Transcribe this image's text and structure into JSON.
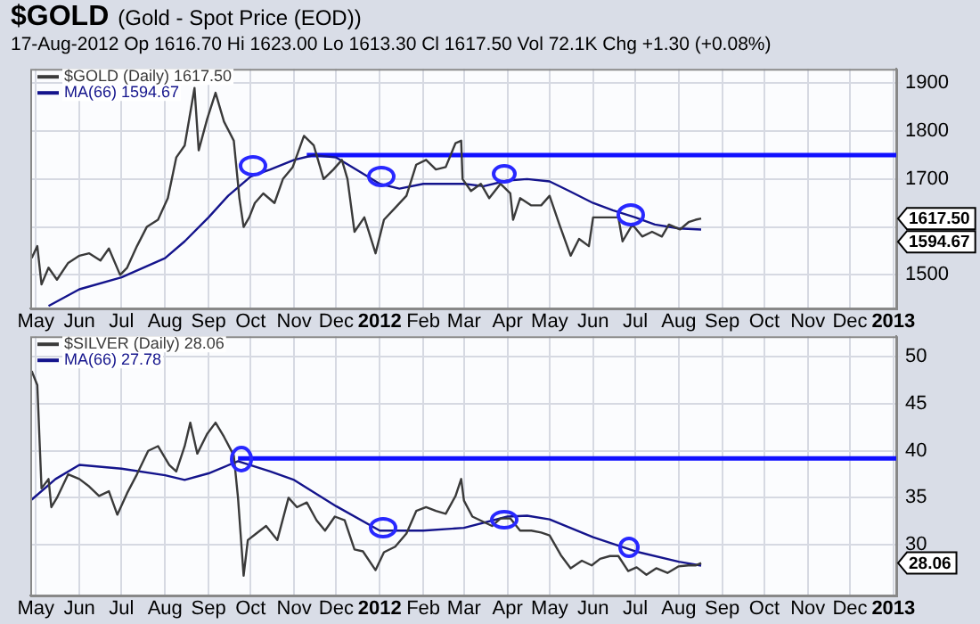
{
  "chart_data": [
    {
      "type": "line",
      "title": "$GOLD (Gold - Spot Price (EOD))",
      "subtitle": "17-Aug-2012 Op 1616.70 Hi 1623.00 Lo 1613.30 Cl 1617.50 Vol 72.1K Chg +1.30 (+0.08%)",
      "annotations": [
        "1617.50",
        "1594.67"
      ],
      "xlim": [
        "2011-04-27",
        "2013-01-03"
      ],
      "xticks": [
        {
          "value": "2011-05",
          "label": "May"
        },
        {
          "value": "2011-06",
          "label": "Jun"
        },
        {
          "value": "2011-07",
          "label": "Jul"
        },
        {
          "value": "2011-08",
          "label": "Aug"
        },
        {
          "value": "2011-09",
          "label": "Sep"
        },
        {
          "value": "2011-10",
          "label": "Oct"
        },
        {
          "value": "2011-11",
          "label": "Nov"
        },
        {
          "value": "2011-12",
          "label": "Dec"
        },
        {
          "value": "2012-01",
          "label": "2012"
        },
        {
          "value": "2012-02",
          "label": "Feb"
        },
        {
          "value": "2012-03",
          "label": "Mar"
        },
        {
          "value": "2012-04",
          "label": "Apr"
        },
        {
          "value": "2012-05",
          "label": "May"
        },
        {
          "value": "2012-06",
          "label": "Jun"
        },
        {
          "value": "2012-07",
          "label": "Jul"
        },
        {
          "value": "2012-08",
          "label": "Aug"
        },
        {
          "value": "2012-09",
          "label": "Sep"
        },
        {
          "value": "2012-10",
          "label": "Oct"
        },
        {
          "value": "2012-11",
          "label": "Nov"
        },
        {
          "value": "2012-12",
          "label": "Dec"
        },
        {
          "value": "2013-01",
          "label": "2013"
        }
      ],
      "ylim": [
        1430,
        1930
      ],
      "yticks": [
        1500,
        {
          "value": 1600,
          "label": null
        },
        1700,
        1800,
        1900
      ],
      "grid": true,
      "legend": "top left",
      "series": [
        {
          "name": "$GOLD (Daily) 1617.50",
          "color": "#3a3a3a",
          "x": [
            "2011-04-28",
            "2011-05-02",
            "2011-05-05",
            "2011-05-10",
            "2011-05-16",
            "2011-05-24",
            "2011-06-01",
            "2011-06-08",
            "2011-06-16",
            "2011-06-22",
            "2011-06-30",
            "2011-07-05",
            "2011-07-12",
            "2011-07-19",
            "2011-07-27",
            "2011-08-03",
            "2011-08-09",
            "2011-08-15",
            "2011-08-22",
            "2011-08-25",
            "2011-08-31",
            "2011-09-06",
            "2011-09-12",
            "2011-09-19",
            "2011-09-23",
            "2011-09-26",
            "2011-09-30",
            "2011-10-04",
            "2011-10-10",
            "2011-10-18",
            "2011-10-24",
            "2011-10-31",
            "2011-11-08",
            "2011-11-15",
            "2011-11-22",
            "2011-11-29",
            "2011-12-05",
            "2011-12-09",
            "2011-12-14",
            "2011-12-21",
            "2011-12-29",
            "2012-01-04",
            "2012-01-12",
            "2012-01-20",
            "2012-01-27",
            "2012-02-03",
            "2012-02-10",
            "2012-02-17",
            "2012-02-24",
            "2012-02-28",
            "2012-02-29",
            "2012-03-06",
            "2012-03-13",
            "2012-03-19",
            "2012-03-27",
            "2012-04-03",
            "2012-04-05",
            "2012-04-10",
            "2012-04-18",
            "2012-04-25",
            "2012-05-01",
            "2012-05-08",
            "2012-05-16",
            "2012-05-22",
            "2012-05-29",
            "2012-06-01",
            "2012-06-06",
            "2012-06-13",
            "2012-06-19",
            "2012-06-22",
            "2012-06-29",
            "2012-07-06",
            "2012-07-13",
            "2012-07-20",
            "2012-07-25",
            "2012-08-02",
            "2012-08-08",
            "2012-08-13",
            "2012-08-17"
          ],
          "values": [
            1535,
            1560,
            1480,
            1515,
            1490,
            1525,
            1540,
            1545,
            1530,
            1555,
            1500,
            1515,
            1560,
            1600,
            1615,
            1660,
            1745,
            1770,
            1890,
            1760,
            1825,
            1880,
            1820,
            1780,
            1660,
            1600,
            1620,
            1650,
            1670,
            1650,
            1700,
            1725,
            1790,
            1770,
            1700,
            1720,
            1740,
            1700,
            1590,
            1620,
            1545,
            1615,
            1640,
            1665,
            1730,
            1740,
            1720,
            1725,
            1775,
            1780,
            1700,
            1675,
            1690,
            1660,
            1690,
            1670,
            1615,
            1660,
            1645,
            1645,
            1665,
            1605,
            1540,
            1575,
            1560,
            1620,
            1620,
            1620,
            1620,
            1570,
            1605,
            1580,
            1590,
            1580,
            1605,
            1595,
            1610,
            1615,
            1617.5
          ]
        },
        {
          "name": "MA(66) 1594.67",
          "color": "#14148c",
          "x": [
            "2011-05-10",
            "2011-06-01",
            "2011-07-01",
            "2011-08-01",
            "2011-08-15",
            "2011-09-01",
            "2011-09-15",
            "2011-10-01",
            "2011-10-15",
            "2011-11-01",
            "2011-11-15",
            "2011-12-01",
            "2011-12-15",
            "2012-01-01",
            "2012-01-15",
            "2012-02-01",
            "2012-03-01",
            "2012-03-15",
            "2012-04-01",
            "2012-04-15",
            "2012-05-01",
            "2012-05-15",
            "2012-06-01",
            "2012-06-15",
            "2012-07-01",
            "2012-07-15",
            "2012-08-01",
            "2012-08-17"
          ],
          "values": [
            1435,
            1470,
            1495,
            1535,
            1570,
            1620,
            1665,
            1705,
            1720,
            1740,
            1750,
            1745,
            1720,
            1690,
            1680,
            1690,
            1690,
            1685,
            1697,
            1700,
            1695,
            1675,
            1650,
            1635,
            1620,
            1605,
            1597,
            1594.67
          ]
        },
        {
          "color": "#1010ff",
          "x": [
            "2011-11-10",
            "2013-01-03"
          ],
          "values": [
            1750,
            1750
          ]
        }
      ]
    },
    {
      "type": "line",
      "annotations": [
        "28.06"
      ],
      "xlim": [
        "2011-04-27",
        "2013-01-03"
      ],
      "xticks": [
        {
          "value": "2011-05",
          "label": "May"
        },
        {
          "value": "2011-06",
          "label": "Jun"
        },
        {
          "value": "2011-07",
          "label": "Jul"
        },
        {
          "value": "2011-08",
          "label": "Aug"
        },
        {
          "value": "2011-09",
          "label": "Sep"
        },
        {
          "value": "2011-10",
          "label": "Oct"
        },
        {
          "value": "2011-11",
          "label": "Nov"
        },
        {
          "value": "2011-12",
          "label": "Dec"
        },
        {
          "value": "2012-01",
          "label": "2012"
        },
        {
          "value": "2012-02",
          "label": "Feb"
        },
        {
          "value": "2012-03",
          "label": "Mar"
        },
        {
          "value": "2012-04",
          "label": "Apr"
        },
        {
          "value": "2012-05",
          "label": "May"
        },
        {
          "value": "2012-06",
          "label": "Jun"
        },
        {
          "value": "2012-07",
          "label": "Jul"
        },
        {
          "value": "2012-08",
          "label": "Aug"
        },
        {
          "value": "2012-09",
          "label": "Sep"
        },
        {
          "value": "2012-10",
          "label": "Oct"
        },
        {
          "value": "2012-11",
          "label": "Nov"
        },
        {
          "value": "2012-12",
          "label": "Dec"
        },
        {
          "value": "2013-01",
          "label": "2013"
        }
      ],
      "ylim": [
        24.6,
        52.2
      ],
      "yticks": [
        30,
        35,
        40,
        45,
        50
      ],
      "grid": true,
      "legend": "top left",
      "series": [
        {
          "name": "$SILVER (Daily) 28.06",
          "color": "#3a3a3a",
          "x": [
            "2011-04-28",
            "2011-05-02",
            "2011-05-05",
            "2011-05-10",
            "2011-05-12",
            "2011-05-16",
            "2011-05-24",
            "2011-06-01",
            "2011-06-08",
            "2011-06-15",
            "2011-06-22",
            "2011-06-28",
            "2011-07-05",
            "2011-07-12",
            "2011-07-20",
            "2011-07-27",
            "2011-08-04",
            "2011-08-09",
            "2011-08-15",
            "2011-08-19",
            "2011-08-24",
            "2011-08-31",
            "2011-09-06",
            "2011-09-12",
            "2011-09-19",
            "2011-09-22",
            "2011-09-26",
            "2011-09-29",
            "2011-10-05",
            "2011-10-12",
            "2011-10-20",
            "2011-10-28",
            "2011-11-03",
            "2011-11-10",
            "2011-11-17",
            "2011-11-23",
            "2011-11-30",
            "2011-12-07",
            "2011-12-14",
            "2011-12-20",
            "2011-12-29",
            "2012-01-04",
            "2012-01-12",
            "2012-01-20",
            "2012-01-27",
            "2012-02-03",
            "2012-02-10",
            "2012-02-17",
            "2012-02-24",
            "2012-02-28",
            "2012-03-01",
            "2012-03-07",
            "2012-03-14",
            "2012-03-21",
            "2012-03-27",
            "2012-04-03",
            "2012-04-10",
            "2012-04-18",
            "2012-04-25",
            "2012-05-01",
            "2012-05-09",
            "2012-05-16",
            "2012-05-24",
            "2012-05-31",
            "2012-06-06",
            "2012-06-13",
            "2012-06-19",
            "2012-06-26",
            "2012-07-02",
            "2012-07-09",
            "2012-07-16",
            "2012-07-24",
            "2012-08-01",
            "2012-08-08",
            "2012-08-13",
            "2012-08-17"
          ],
          "values": [
            48.5,
            47,
            36,
            37,
            34,
            35,
            37.5,
            37,
            36.2,
            35.2,
            35.7,
            33.2,
            35.5,
            37.5,
            40,
            40.5,
            38.5,
            37.8,
            40.5,
            43,
            39.7,
            41.8,
            43,
            41.5,
            39.5,
            35,
            26.7,
            30.5,
            31.2,
            32,
            30.5,
            35,
            34,
            34.5,
            32.6,
            31.5,
            33,
            32.6,
            29.5,
            29.3,
            27.3,
            29.2,
            29.8,
            31.2,
            33.6,
            34,
            33.6,
            33.3,
            35.2,
            37,
            34.7,
            33,
            32.5,
            32,
            32.8,
            32.8,
            31.5,
            31.5,
            31.3,
            31,
            28.9,
            27.5,
            28.3,
            27.8,
            28.5,
            28.8,
            28.8,
            27.2,
            27.6,
            26.8,
            27.5,
            27,
            27.7,
            27.8,
            27.8,
            28.06
          ]
        },
        {
          "name": "MA(66) 27.78",
          "color": "#14148c",
          "x": [
            "2011-04-28",
            "2011-05-15",
            "2011-06-01",
            "2011-07-01",
            "2011-08-01",
            "2011-08-15",
            "2011-09-01",
            "2011-09-22",
            "2011-10-15",
            "2011-11-01",
            "2011-12-01",
            "2012-01-01",
            "2012-02-01",
            "2012-03-01",
            "2012-04-01",
            "2012-04-15",
            "2012-05-01",
            "2012-06-01",
            "2012-07-01",
            "2012-08-01",
            "2012-08-17"
          ],
          "values": [
            34.8,
            37,
            38.5,
            38.1,
            37.4,
            36.9,
            37.6,
            38.9,
            37.8,
            36.9,
            34.1,
            31.5,
            31.5,
            31.8,
            33.0,
            33.1,
            32.7,
            30.8,
            29.3,
            28.2,
            27.78
          ]
        },
        {
          "color": "#1010ff",
          "x": [
            "2011-09-22",
            "2013-01-03"
          ],
          "values": [
            39.2,
            39.2
          ]
        }
      ]
    }
  ]
}
